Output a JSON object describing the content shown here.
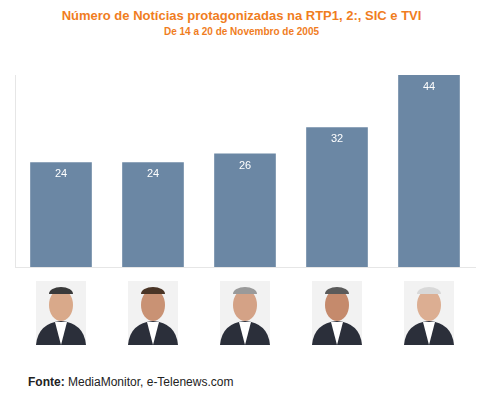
{
  "chart_data": {
    "type": "bar",
    "title": "Número de Notícias protagonizadas na RTP1, 2:, SIC e TVI",
    "subtitle": "De 14 a 20 de Novembro de 2005",
    "categories": [
      null,
      null,
      null,
      null,
      null
    ],
    "values": [
      24,
      24,
      26,
      32,
      44
    ],
    "color": "#6b87a4",
    "ylim": [
      0,
      44
    ],
    "grid": false,
    "tick_labels": false,
    "data_labels": true,
    "source_label": "Fonte:",
    "source": "MediaMonitor, e-Telenews.com"
  }
}
